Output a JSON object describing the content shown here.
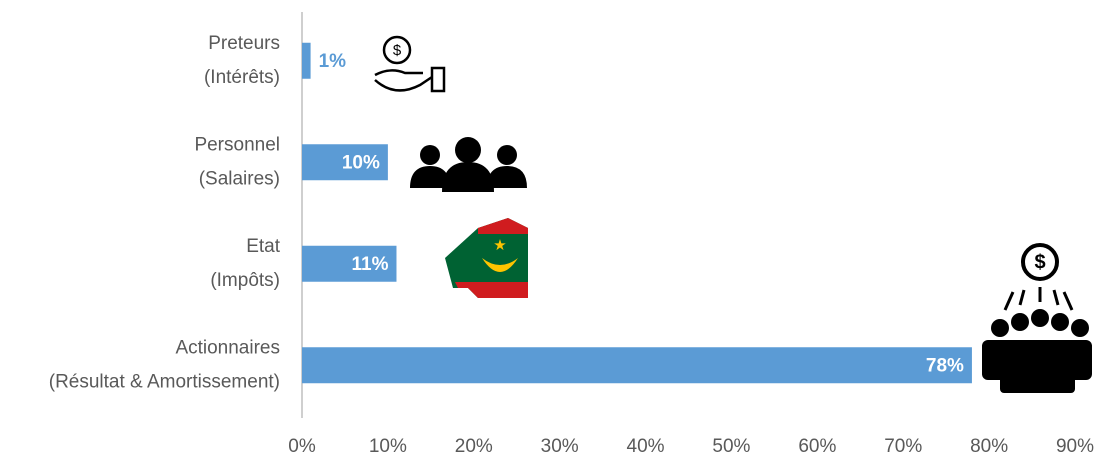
{
  "chart_data": {
    "type": "bar",
    "orientation": "horizontal",
    "categories": [
      [
        "Preteurs",
        "(Intérêts)"
      ],
      [
        "Personnel",
        "(Salaires)"
      ],
      [
        "Etat",
        "(Impôts)"
      ],
      [
        "Actionnaires",
        "(Résultat & Amortissement)"
      ]
    ],
    "values": [
      1,
      10,
      11,
      78
    ],
    "value_labels": [
      "1%",
      "10%",
      "11%",
      "78%"
    ],
    "color": "#5b9bd5",
    "xlim": [
      0,
      90
    ],
    "xticks": [
      {
        "value": 0,
        "label": "0%"
      },
      {
        "value": 10,
        "label": "10%"
      },
      {
        "value": 20,
        "label": "20%"
      },
      {
        "value": 30,
        "label": "30%"
      },
      {
        "value": 40,
        "label": "40%"
      },
      {
        "value": 50,
        "label": "50%"
      },
      {
        "value": 60,
        "label": "60%"
      },
      {
        "value": 70,
        "label": "70%"
      },
      {
        "value": 80,
        "label": "80%"
      },
      {
        "value": 90,
        "label": "90%"
      }
    ]
  }
}
